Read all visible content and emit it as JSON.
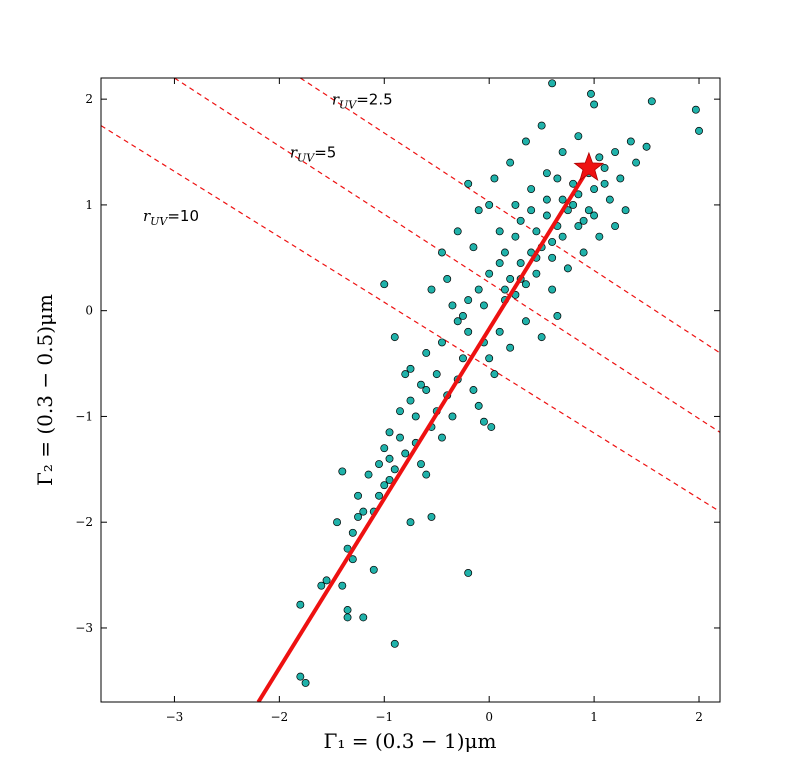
{
  "chart_data": {
    "type": "scatter",
    "title": "",
    "xlabel": "Γ₁ = (0.3 − 1)μm",
    "ylabel": "Γ₂ = (0.3 − 0.5)μm",
    "xlim": [
      -3.7,
      2.2
    ],
    "ylim": [
      -3.7,
      2.2
    ],
    "x_ticks": [
      -3,
      -2,
      -1,
      0,
      1,
      2
    ],
    "y_ticks": [
      -3,
      -2,
      -1,
      0,
      1,
      2
    ],
    "x_tick_labels": [
      "−3",
      "−2",
      "−1",
      "0",
      "1",
      "2"
    ],
    "y_tick_labels": [
      "−3",
      "−2",
      "−1",
      "0",
      "1",
      "2"
    ],
    "grid": false,
    "marker_color": "#20b2aa",
    "marker_edge": "#000000",
    "line_color": "#ee1111",
    "series": [
      {
        "points": [
          [
            -1.8,
            -3.46
          ],
          [
            -1.75,
            -3.52
          ],
          [
            -1.8,
            -2.78
          ],
          [
            -1.6,
            -2.6
          ],
          [
            -1.55,
            -2.55
          ],
          [
            -1.4,
            -2.6
          ],
          [
            -1.35,
            -2.9
          ],
          [
            -1.35,
            -2.83
          ],
          [
            -1.2,
            -2.9
          ],
          [
            -1.1,
            -2.45
          ],
          [
            -1.35,
            -2.25
          ],
          [
            -1.45,
            -2.0
          ],
          [
            -1.3,
            -2.35
          ],
          [
            -0.9,
            -3.15
          ],
          [
            -0.2,
            -2.48
          ],
          [
            -1.4,
            -1.52
          ],
          [
            -1.2,
            -1.9
          ],
          [
            -1.25,
            -1.75
          ],
          [
            -1.0,
            -1.65
          ],
          [
            -1.05,
            -1.75
          ],
          [
            -1.1,
            -1.9
          ],
          [
            -0.95,
            -1.6
          ],
          [
            -0.9,
            -1.5
          ],
          [
            -0.75,
            -2.0
          ],
          [
            -0.55,
            -1.95
          ],
          [
            -0.95,
            -1.15
          ],
          [
            -1.0,
            -1.3
          ],
          [
            -1.05,
            -1.45
          ],
          [
            -0.8,
            -1.35
          ],
          [
            -0.85,
            -0.95
          ],
          [
            -0.75,
            -0.85
          ],
          [
            -0.7,
            -1.25
          ],
          [
            -0.65,
            -1.45
          ],
          [
            -0.6,
            -1.55
          ],
          [
            -0.55,
            -1.1
          ],
          [
            -1.0,
            0.25
          ],
          [
            -0.8,
            -0.6
          ],
          [
            -0.75,
            -0.55
          ],
          [
            -0.9,
            -0.25
          ],
          [
            -0.65,
            -0.7
          ],
          [
            -0.6,
            -0.4
          ],
          [
            -0.5,
            -0.6
          ],
          [
            -0.45,
            -0.3
          ],
          [
            -0.4,
            -0.8
          ],
          [
            -0.35,
            -1.0
          ],
          [
            -0.3,
            -0.65
          ],
          [
            -0.25,
            -0.45
          ],
          [
            -0.2,
            -0.2
          ],
          [
            -0.15,
            -0.75
          ],
          [
            -0.1,
            -0.9
          ],
          [
            -0.05,
            -1.05
          ],
          [
            0.02,
            -1.1
          ],
          [
            -0.5,
            -0.95
          ],
          [
            -0.45,
            -1.2
          ],
          [
            -0.35,
            0.05
          ],
          [
            -0.3,
            -0.1
          ],
          [
            -0.2,
            0.1
          ],
          [
            -0.1,
            0.2
          ],
          [
            -0.05,
            -0.3
          ],
          [
            0.0,
            -0.45
          ],
          [
            0.05,
            -0.6
          ],
          [
            0.1,
            -0.2
          ],
          [
            0.15,
            0.1
          ],
          [
            0.2,
            0.3
          ],
          [
            0.25,
            0.15
          ],
          [
            0.3,
            0.45
          ],
          [
            0.35,
            0.25
          ],
          [
            0.4,
            0.55
          ],
          [
            0.45,
            0.75
          ],
          [
            0.5,
            0.6
          ],
          [
            0.55,
            0.9
          ],
          [
            0.6,
            0.5
          ],
          [
            0.65,
            0.8
          ],
          [
            0.7,
            1.05
          ],
          [
            0.75,
            0.95
          ],
          [
            0.8,
            1.2
          ],
          [
            0.85,
            1.1
          ],
          [
            0.9,
            0.85
          ],
          [
            0.95,
            1.3
          ],
          [
            1.0,
            1.15
          ],
          [
            1.05,
            1.45
          ],
          [
            1.1,
            1.35
          ],
          [
            1.15,
            1.05
          ],
          [
            1.2,
            1.5
          ],
          [
            1.25,
            1.25
          ],
          [
            1.3,
            0.95
          ],
          [
            1.35,
            1.6
          ],
          [
            1.4,
            1.4
          ],
          [
            1.5,
            1.55
          ],
          [
            1.55,
            1.98
          ],
          [
            1.97,
            1.9
          ],
          [
            2.0,
            1.7
          ],
          [
            0.6,
            2.15
          ],
          [
            0.97,
            2.05
          ],
          [
            1.0,
            1.95
          ],
          [
            0.5,
            1.75
          ],
          [
            0.35,
            1.6
          ],
          [
            0.2,
            1.4
          ],
          [
            0.05,
            1.25
          ],
          [
            -0.1,
            0.95
          ],
          [
            -0.2,
            1.2
          ],
          [
            0.0,
            1.0
          ],
          [
            -0.3,
            0.75
          ],
          [
            -0.45,
            0.55
          ],
          [
            -0.55,
            0.2
          ],
          [
            -0.15,
            0.6
          ],
          [
            0.1,
            0.75
          ],
          [
            0.25,
            1.0
          ],
          [
            0.4,
            1.15
          ],
          [
            0.55,
            1.3
          ],
          [
            0.7,
            1.5
          ],
          [
            0.85,
            1.65
          ],
          [
            0.45,
            0.35
          ],
          [
            0.6,
            0.2
          ],
          [
            0.75,
            0.4
          ],
          [
            0.9,
            0.55
          ],
          [
            1.05,
            0.7
          ],
          [
            1.2,
            0.8
          ],
          [
            0.35,
            -0.1
          ],
          [
            0.5,
            -0.25
          ],
          [
            0.65,
            -0.05
          ],
          [
            0.2,
            -0.35
          ],
          [
            -0.25,
            -0.05
          ],
          [
            -0.4,
            0.3
          ],
          [
            0.3,
            0.85
          ],
          [
            0.15,
            0.55
          ],
          [
            0.0,
            0.35
          ],
          [
            -0.05,
            0.05
          ],
          [
            0.55,
            1.05
          ],
          [
            0.65,
            1.25
          ],
          [
            0.8,
            1.0
          ],
          [
            0.95,
            0.95
          ],
          [
            1.1,
            1.2
          ],
          [
            0.4,
            0.95
          ],
          [
            0.25,
            0.7
          ],
          [
            0.1,
            0.45
          ],
          [
            0.7,
            0.7
          ],
          [
            0.85,
            0.8
          ],
          [
            1.0,
            0.9
          ],
          [
            0.6,
            0.65
          ],
          [
            0.45,
            0.5
          ],
          [
            0.3,
            0.3
          ],
          [
            0.15,
            0.2
          ],
          [
            -0.6,
            -0.75
          ],
          [
            -0.7,
            -1.0
          ],
          [
            -0.85,
            -1.2
          ],
          [
            -0.95,
            -1.4
          ],
          [
            -1.15,
            -1.55
          ],
          [
            -1.25,
            -1.95
          ],
          [
            -1.3,
            -2.1
          ]
        ]
      }
    ],
    "fit_line": {
      "x": [
        -2.2,
        0.95
      ],
      "y": [
        -3.7,
        1.35
      ]
    },
    "star": {
      "x": 0.95,
      "y": 1.35
    },
    "dashed_lines": [
      {
        "x": [
          -1.8,
          2.2
        ],
        "y": [
          2.2,
          -0.4
        ]
      },
      {
        "x": [
          -3.0,
          2.2
        ],
        "y": [
          2.2,
          -1.15
        ]
      },
      {
        "x": [
          -3.7,
          2.2
        ],
        "y": [
          1.75,
          -1.9
        ]
      }
    ],
    "annotations": [
      {
        "label": "UV",
        "value": "2.5",
        "x": -1.5,
        "y": 1.95
      },
      {
        "label": "UV",
        "value": "5",
        "x": -1.9,
        "y": 1.45
      },
      {
        "label": "UV",
        "value": "10",
        "x": -3.3,
        "y": 0.85
      }
    ]
  }
}
